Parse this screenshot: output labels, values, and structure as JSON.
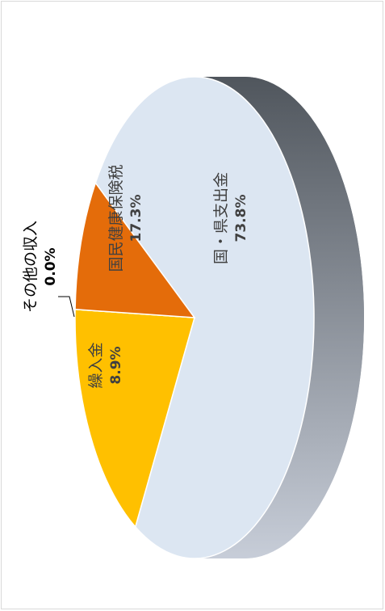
{
  "chart_data": {
    "type": "pie",
    "style": "3d",
    "orientation": "rotated-90-clockwise",
    "legend": "none",
    "slices": [
      {
        "label": "国・県支出金",
        "value": 73.8,
        "value_label": "73.8%",
        "color": "#dce6f2"
      },
      {
        "label": "国民健康保険税",
        "value": 17.3,
        "value_label": "17.3%",
        "color": "#ffc000"
      },
      {
        "label": "その他の収入",
        "value": 0.0,
        "value_label": "0.0%",
        "color": "#a6a6a6"
      },
      {
        "label": "繰入金",
        "value": 8.9,
        "value_label": "8.9%",
        "color": "#e46c0a"
      }
    ],
    "side_color_dark": "#50565d",
    "side_color_light": "#c7cdd8"
  }
}
